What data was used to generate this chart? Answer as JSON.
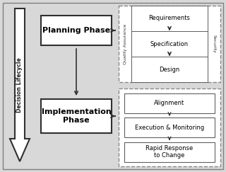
{
  "bg_color": "#d8d8d8",
  "box_fill": "#ffffff",
  "box_edge": "#303030",
  "dashed_edge": "#888888",
  "arrow_color": "#303030",
  "qa_label": "Quality Assurance",
  "sec_label": "Security",
  "lifecycle_label": "Decision Lifecycle",
  "planning_label": "Planning Phase",
  "impl_label": "Implementation\nPhase",
  "top_inner_labels": [
    "Requirements",
    "Specification",
    "Design"
  ],
  "bot_inner_labels": [
    "Alignment",
    "Execution & Monitoring",
    "Rapid Response\nto Change"
  ]
}
